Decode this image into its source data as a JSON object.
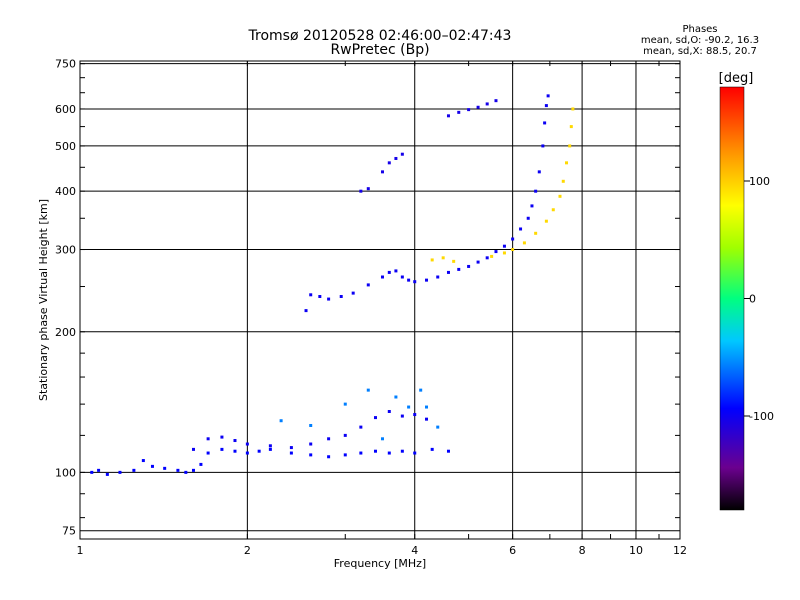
{
  "chart_data": {
    "type": "scatter",
    "title": "Tromsø 20120528 02:46:00–02:47:43",
    "subtitle": "RwPretec (Bp)",
    "xlabel": "Frequency [MHz]",
    "ylabel": "Stationary phase Virtual Height [km]",
    "xscale": "log",
    "yscale": "log",
    "xlim": [
      1,
      12
    ],
    "ylim": [
      72,
      760
    ],
    "xticks": [
      1,
      2,
      4,
      6,
      8,
      10,
      12
    ],
    "xtick_labels": [
      "1",
      "2",
      "4",
      "6",
      "8",
      "10",
      "12"
    ],
    "yticks": [
      75,
      100,
      200,
      300,
      400,
      500,
      600,
      750
    ],
    "ytick_labels": [
      "75",
      "100",
      "200",
      "300",
      "400",
      "500",
      "600",
      "750"
    ],
    "grid": true,
    "phases_legend": {
      "heading": "Phases",
      "line_o": "mean, sd,O:  -90.2, 16.3",
      "line_x": "mean, sd,X:  88.5, 20.7"
    },
    "colorbar": {
      "label": "[deg]",
      "range": [
        -180,
        180
      ],
      "ticks": [
        -100,
        0,
        100
      ],
      "tick_labels": [
        "-100",
        "0",
        "100"
      ]
    },
    "series": [
      {
        "name": "E-layer O (low)",
        "phase": -95,
        "points": [
          [
            1.05,
            100
          ],
          [
            1.08,
            101
          ],
          [
            1.12,
            99
          ],
          [
            1.18,
            100
          ],
          [
            1.25,
            101
          ],
          [
            1.3,
            106
          ],
          [
            1.35,
            103
          ],
          [
            1.42,
            102
          ],
          [
            1.5,
            101
          ],
          [
            1.55,
            100
          ],
          [
            1.6,
            101
          ],
          [
            1.65,
            104
          ],
          [
            1.7,
            110
          ],
          [
            1.8,
            112
          ],
          [
            1.9,
            111
          ],
          [
            2.0,
            110
          ],
          [
            2.1,
            111
          ],
          [
            2.2,
            112
          ],
          [
            2.4,
            110
          ],
          [
            2.6,
            109
          ],
          [
            2.8,
            108
          ],
          [
            3.0,
            109
          ],
          [
            3.2,
            110
          ],
          [
            3.4,
            111
          ],
          [
            3.6,
            110
          ],
          [
            3.8,
            111
          ],
          [
            4.0,
            110
          ],
          [
            4.3,
            112
          ],
          [
            4.6,
            111
          ]
        ]
      },
      {
        "name": "E-layer O (upper)",
        "phase": -100,
        "points": [
          [
            1.6,
            112
          ],
          [
            1.7,
            118
          ],
          [
            1.8,
            119
          ],
          [
            1.9,
            117
          ],
          [
            2.0,
            115
          ],
          [
            2.2,
            114
          ],
          [
            2.4,
            113
          ],
          [
            2.6,
            115
          ],
          [
            2.8,
            118
          ],
          [
            3.0,
            120
          ],
          [
            3.2,
            125
          ],
          [
            3.4,
            131
          ],
          [
            3.6,
            135
          ],
          [
            3.8,
            132
          ],
          [
            4.0,
            133
          ],
          [
            4.2,
            130
          ]
        ]
      },
      {
        "name": "E-layer scattered",
        "phase": -60,
        "points": [
          [
            2.3,
            129
          ],
          [
            2.6,
            126
          ],
          [
            3.0,
            140
          ],
          [
            3.3,
            150
          ],
          [
            3.5,
            118
          ],
          [
            3.7,
            145
          ],
          [
            3.9,
            138
          ],
          [
            4.1,
            150
          ],
          [
            4.2,
            138
          ],
          [
            4.4,
            125
          ]
        ]
      },
      {
        "name": "F-layer O trace",
        "phase": -100,
        "points": [
          [
            2.55,
            222
          ],
          [
            2.6,
            240
          ],
          [
            2.7,
            238
          ],
          [
            2.8,
            235
          ],
          [
            2.95,
            238
          ],
          [
            3.1,
            242
          ],
          [
            3.3,
            252
          ],
          [
            3.5,
            262
          ],
          [
            3.6,
            268
          ],
          [
            3.7,
            270
          ],
          [
            3.8,
            262
          ],
          [
            3.9,
            258
          ],
          [
            4.0,
            256
          ],
          [
            4.2,
            258
          ],
          [
            4.4,
            262
          ],
          [
            4.6,
            268
          ],
          [
            4.8,
            272
          ],
          [
            5.0,
            276
          ],
          [
            5.2,
            282
          ],
          [
            5.4,
            288
          ],
          [
            5.6,
            297
          ],
          [
            5.8,
            305
          ],
          [
            6.0,
            316
          ],
          [
            6.2,
            332
          ],
          [
            6.4,
            350
          ],
          [
            6.5,
            372
          ],
          [
            6.6,
            400
          ],
          [
            6.7,
            440
          ],
          [
            6.8,
            500
          ],
          [
            6.85,
            560
          ],
          [
            6.9,
            610
          ],
          [
            6.95,
            640
          ]
        ]
      },
      {
        "name": "F-layer upper segments",
        "phase": -105,
        "points": [
          [
            3.2,
            400
          ],
          [
            3.3,
            405
          ],
          [
            3.5,
            440
          ],
          [
            3.6,
            460
          ],
          [
            3.7,
            470
          ],
          [
            3.8,
            480
          ],
          [
            4.6,
            580
          ],
          [
            4.8,
            590
          ],
          [
            5.0,
            598
          ],
          [
            5.2,
            605
          ],
          [
            5.4,
            615
          ],
          [
            5.6,
            625
          ]
        ]
      },
      {
        "name": "F-layer X trace",
        "phase": 95,
        "points": [
          [
            4.3,
            285
          ],
          [
            4.5,
            288
          ],
          [
            4.7,
            283
          ],
          [
            5.5,
            290
          ],
          [
            5.8,
            295
          ],
          [
            6.0,
            300
          ],
          [
            6.3,
            310
          ],
          [
            6.6,
            325
          ],
          [
            6.9,
            345
          ],
          [
            7.1,
            365
          ],
          [
            7.3,
            390
          ],
          [
            7.4,
            420
          ],
          [
            7.5,
            460
          ],
          [
            7.6,
            500
          ],
          [
            7.65,
            550
          ],
          [
            7.7,
            600
          ]
        ]
      }
    ]
  }
}
